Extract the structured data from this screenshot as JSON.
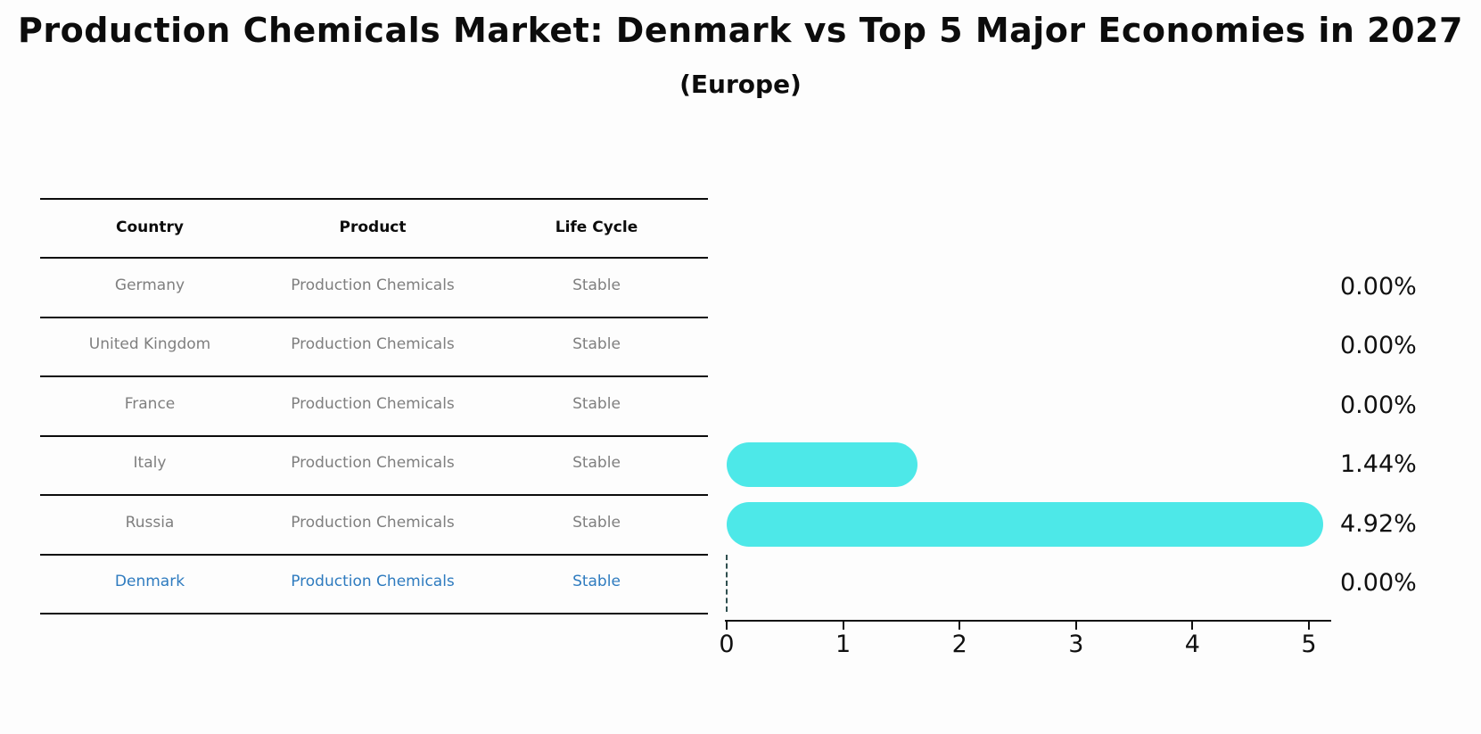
{
  "title": "Production Chemicals Market: Denmark vs Top 5 Major Economies in 2027",
  "subtitle": "(Europe)",
  "colors": {
    "bar": "#4de8e8",
    "highlight_text": "#2e7bbf",
    "row_text": "#7f7f7f",
    "dashed_marker": "#2f4f4f",
    "background": "#fdfdfd"
  },
  "table": {
    "headers": [
      "Country",
      "Product",
      "Life Cycle"
    ],
    "rows": [
      {
        "country": "Germany",
        "product": "Production Chemicals",
        "life_cycle": "Stable",
        "highlight": false
      },
      {
        "country": "United Kingdom",
        "product": "Production Chemicals",
        "life_cycle": "Stable",
        "highlight": false
      },
      {
        "country": "France",
        "product": "Production Chemicals",
        "life_cycle": "Stable",
        "highlight": false
      },
      {
        "country": "Italy",
        "product": "Production Chemicals",
        "life_cycle": "Stable",
        "highlight": false
      },
      {
        "country": "Russia",
        "product": "Production Chemicals",
        "life_cycle": "Stable",
        "highlight": false
      },
      {
        "country": "Denmark",
        "product": "Production Chemicals",
        "life_cycle": "Stable",
        "highlight": true
      }
    ]
  },
  "chart_data": {
    "type": "bar",
    "orientation": "horizontal",
    "title": "Production Chemicals Market: Denmark vs Top 5 Major Economies in 2027 (Europe)",
    "categories": [
      "Germany",
      "United Kingdom",
      "France",
      "Italy",
      "Russia",
      "Denmark"
    ],
    "values": [
      0.0,
      0.0,
      0.0,
      1.44,
      4.92,
      0.0
    ],
    "value_labels": [
      "0.00%",
      "0.00%",
      "0.00%",
      "1.44%",
      "4.92%",
      "0.00%"
    ],
    "xlabel": "",
    "ylabel": "",
    "xlim": [
      0,
      5
    ],
    "x_ticks": [
      0,
      1,
      2,
      3,
      4,
      5
    ],
    "grid": false,
    "legend": false,
    "highlight_category": "Denmark",
    "highlight_marker": "dashed-line-at-zero"
  }
}
